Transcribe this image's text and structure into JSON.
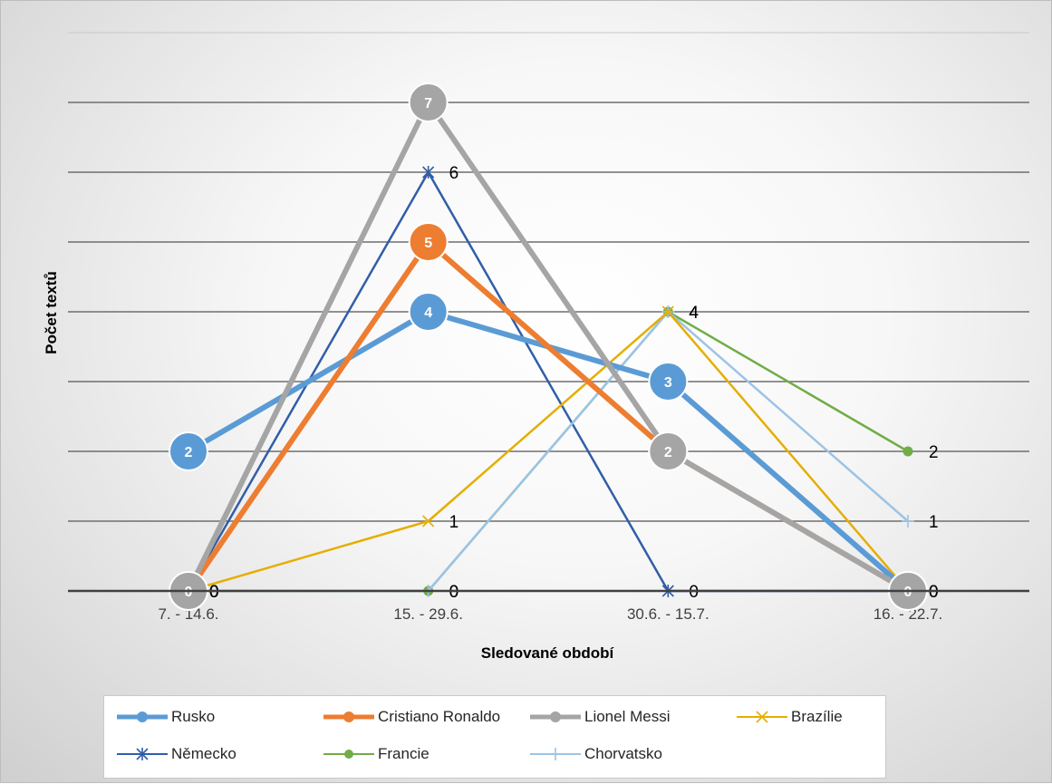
{
  "chart_data": {
    "type": "line",
    "title": "",
    "xlabel": "Sledované období",
    "ylabel": "Počet textů",
    "categories": [
      "7. - 14.6.",
      "15. - 29.6.",
      "30.6. - 15.7.",
      "16. - 22.7."
    ],
    "ylim": [
      0,
      8
    ],
    "grid": true,
    "legend_position": "bottom",
    "series": [
      {
        "name": "Rusko",
        "values": [
          2,
          4,
          3,
          0
        ],
        "color": "#5b9bd5",
        "marker": "bubble",
        "label_style": "inside"
      },
      {
        "name": "Cristiano Ronaldo",
        "values": [
          0,
          5,
          2,
          0
        ],
        "color": "#ed7d31",
        "marker": "bubble",
        "label_style": "inside"
      },
      {
        "name": "Lionel Messi",
        "values": [
          0,
          7,
          2,
          0
        ],
        "color": "#a5a5a5",
        "marker": "bubble",
        "label_style": "inside"
      },
      {
        "name": "Brazílie",
        "values": [
          0,
          1,
          4,
          0
        ],
        "color": "#e5ae00",
        "marker": "x",
        "label_style": "outside"
      },
      {
        "name": "Německo",
        "values": [
          0,
          6,
          0,
          0
        ],
        "color": "#305ea8",
        "marker": "star",
        "label_style": "outside"
      },
      {
        "name": "Francie",
        "values": [
          0,
          0,
          4,
          2
        ],
        "color": "#70ad47",
        "marker": "dot",
        "label_style": "outside"
      },
      {
        "name": "Chorvatsko",
        "values": [
          0,
          0,
          4,
          1
        ],
        "color": "#9dc3e6",
        "marker": "plus",
        "label_style": "outside"
      }
    ]
  }
}
